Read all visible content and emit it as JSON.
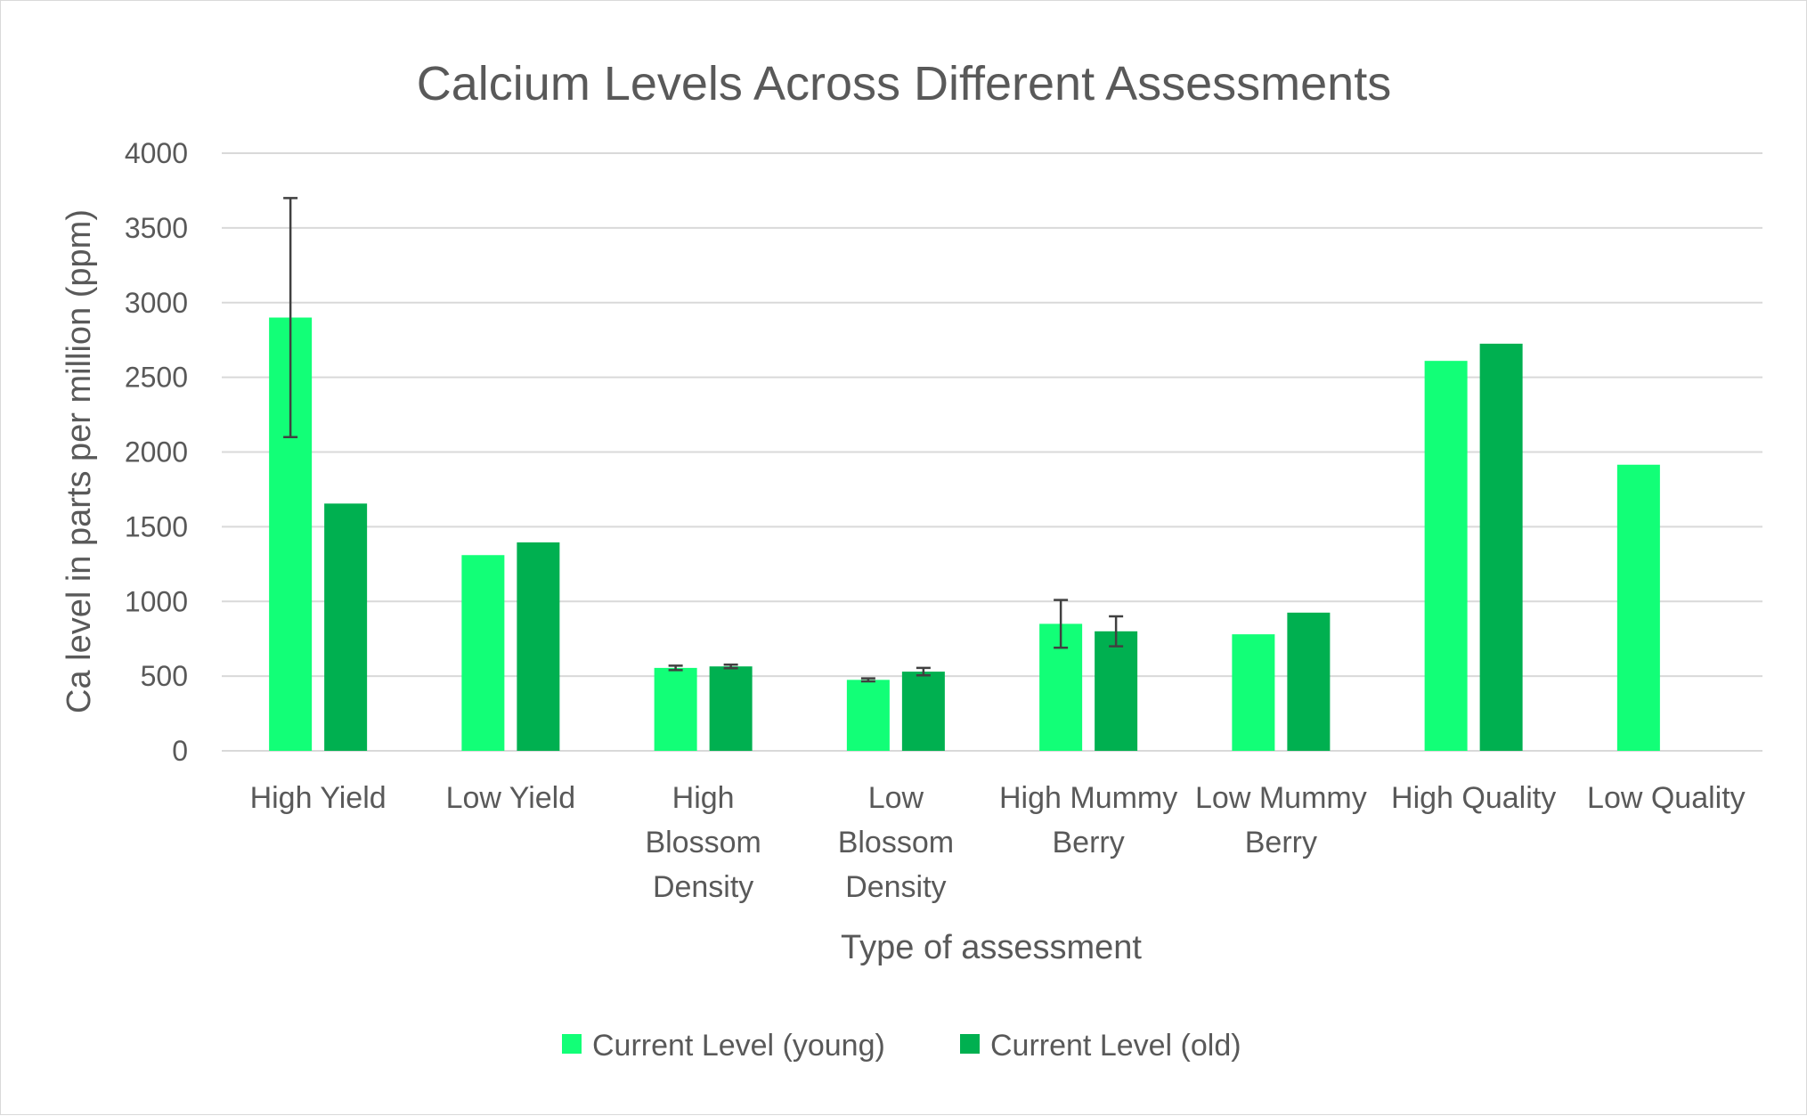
{
  "chart_data": {
    "type": "bar",
    "title": "Calcium Levels Across Different Assessments",
    "xlabel": "Type of assessment",
    "ylabel": "Ca level in parts per million (ppm)",
    "ylim": [
      0,
      4000
    ],
    "yticks": [
      0,
      500,
      1000,
      1500,
      2000,
      2500,
      3000,
      3500,
      4000
    ],
    "grid": true,
    "legend_position": "bottom",
    "categories": [
      [
        "High Yield"
      ],
      [
        "Low Yield"
      ],
      [
        "High",
        "Blossom",
        "Density"
      ],
      [
        "Low",
        "Blossom",
        "Density"
      ],
      [
        "High Mummy",
        "Berry"
      ],
      [
        "Low Mummy",
        "Berry"
      ],
      [
        "High Quality"
      ],
      [
        "Low Quality"
      ]
    ],
    "series": [
      {
        "name": "Current Level (young)",
        "color": "#12ff77",
        "values": [
          2900,
          1310,
          555,
          475,
          850,
          780,
          2610,
          1915
        ],
        "error": [
          800,
          null,
          15,
          10,
          160,
          null,
          null,
          null
        ]
      },
      {
        "name": "Current Level (old)",
        "color": "#00b050",
        "values": [
          1655,
          1395,
          565,
          530,
          800,
          925,
          2725,
          null
        ],
        "error": [
          null,
          null,
          12,
          25,
          100,
          null,
          null,
          null
        ]
      }
    ]
  }
}
